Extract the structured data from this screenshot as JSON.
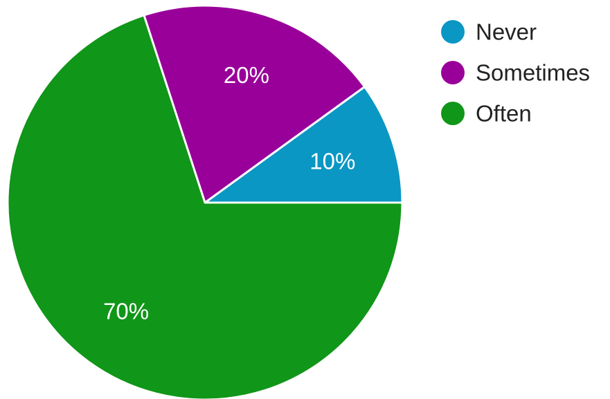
{
  "chart_data": {
    "type": "pie",
    "categories": [
      "Never",
      "Sometimes",
      "Often"
    ],
    "values": [
      10,
      20,
      70
    ],
    "labels": [
      "10%",
      "20%",
      "70%"
    ],
    "colors": [
      "#0a97c4",
      "#990099",
      "#109618"
    ],
    "legend_position": "top-right",
    "start_direction": "east",
    "order": "counterclockwise"
  }
}
